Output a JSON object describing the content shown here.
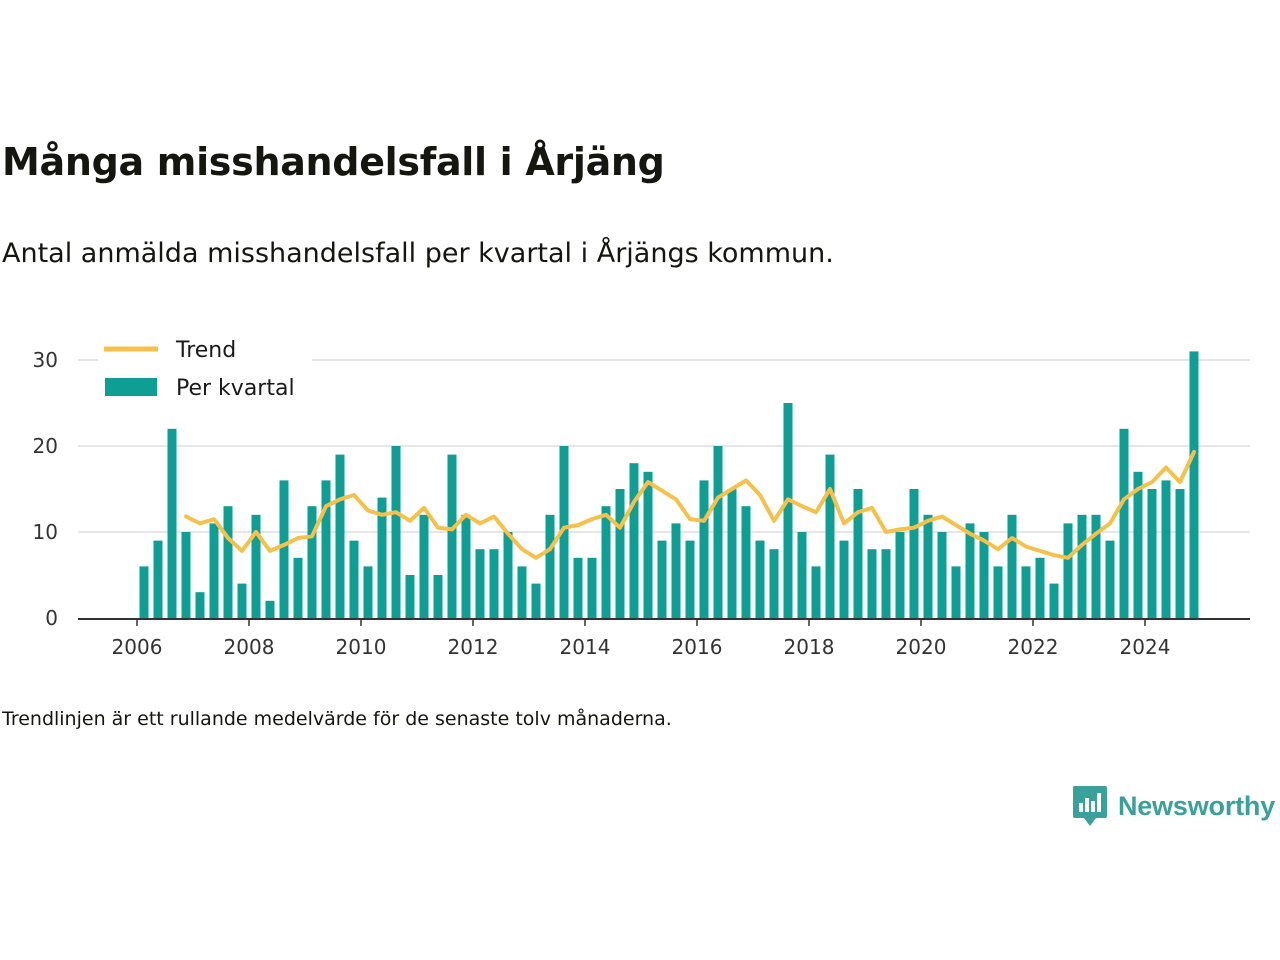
{
  "title": "Många misshandelsfall i Årjäng",
  "subtitle": "Antal anmälda misshandelsfall per kvartal i Årjängs kommun.",
  "note": "Trendlinjen är ett rullande medelvärde för de senaste tolv månaderna.",
  "brand": {
    "name": "Newsworthy",
    "icon": "newsworthy-chart-bubble-icon"
  },
  "colors": {
    "bars": "#0e9e94",
    "trend": "#f5c14b",
    "grid": "#dddddd",
    "axis": "#333333",
    "brand": "#3aa19a"
  },
  "chart_data": {
    "type": "bar",
    "x_label": "",
    "y_label": "",
    "ylim": [
      0,
      30
    ],
    "y_ticks": [
      0,
      10,
      20,
      30
    ],
    "x_ticks": [
      "2006",
      "2008",
      "2010",
      "2012",
      "2014",
      "2016",
      "2018",
      "2020",
      "2022",
      "2024"
    ],
    "grid": "horizontal",
    "legend_position": "top-left",
    "start": "2006 Q1",
    "series": [
      {
        "name": "Per kvartal",
        "type": "bar",
        "values": [
          6,
          9,
          22,
          10,
          3,
          11,
          13,
          4,
          12,
          2,
          16,
          7,
          13,
          16,
          19,
          9,
          6,
          14,
          20,
          5,
          12,
          5,
          19,
          12,
          8,
          8,
          10,
          6,
          4,
          12,
          20,
          7,
          7,
          13,
          15,
          18,
          17,
          9,
          11,
          9,
          16,
          20,
          15,
          13,
          9,
          8,
          25,
          10,
          6,
          19,
          9,
          15,
          8,
          8,
          10,
          15,
          12,
          10,
          6,
          11,
          10,
          6,
          12,
          6,
          7,
          4,
          11,
          12,
          12,
          9,
          22,
          17,
          15,
          16,
          15,
          31
        ]
      },
      {
        "name": "Trend",
        "type": "line",
        "values": [
          null,
          null,
          null,
          11.8,
          11.0,
          11.5,
          9.3,
          7.8,
          10.0,
          7.8,
          8.5,
          9.3,
          9.5,
          13.0,
          13.8,
          14.3,
          12.5,
          12.0,
          12.3,
          11.3,
          12.8,
          10.5,
          10.3,
          12.0,
          11.0,
          11.8,
          9.8,
          8.0,
          7.0,
          8.0,
          10.5,
          10.8,
          11.5,
          12.0,
          10.5,
          13.5,
          15.8,
          14.8,
          13.8,
          11.5,
          11.3,
          14.0,
          15.0,
          16.0,
          14.3,
          11.3,
          13.8,
          13.0,
          12.3,
          15.0,
          11.0,
          12.3,
          12.8,
          10.0,
          10.3,
          10.5,
          11.3,
          11.8,
          10.8,
          9.8,
          9.0,
          8.0,
          9.3,
          8.3,
          7.8,
          7.3,
          7.0,
          8.5,
          9.8,
          11.0,
          13.8,
          15.0,
          15.8,
          17.5,
          15.8,
          19.3
        ]
      }
    ]
  }
}
